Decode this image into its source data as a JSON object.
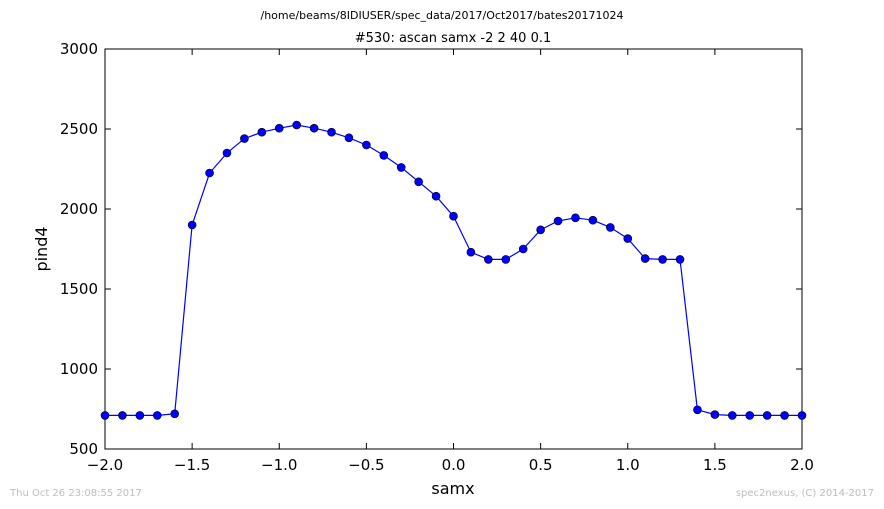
{
  "suptitle": "/home/beams/8IDIUSER/spec_data/2017/Oct2017/bates20171024",
  "footer": {
    "timestamp": "Thu Oct 26 23:08:55 2017",
    "credit": "spec2nexus, (C) 2014-2017"
  },
  "chart_data": {
    "type": "line",
    "title": "#530: ascan  samx -2 2  40 0.1",
    "xlabel": "samx",
    "ylabel": "pind4",
    "xlim": [
      -2.0,
      2.0
    ],
    "ylim": [
      500,
      3000
    ],
    "xticks": [
      "−2.0",
      "−1.5",
      "−1.0",
      "−0.5",
      "0.0",
      "0.5",
      "1.0",
      "1.5",
      "2.0"
    ],
    "yticks": [
      "500",
      "1000",
      "1500",
      "2000",
      "2500",
      "3000"
    ],
    "grid": false,
    "marker": "circle",
    "color": "#0000ff",
    "x": [
      -2.0,
      -1.9,
      -1.8,
      -1.7,
      -1.6,
      -1.5,
      -1.4,
      -1.3,
      -1.2,
      -1.1,
      -1.0,
      -0.9,
      -0.8,
      -0.7,
      -0.6,
      -0.5,
      -0.4,
      -0.3,
      -0.2,
      -0.1,
      0.0,
      0.1,
      0.2,
      0.3,
      0.4,
      0.5,
      0.6,
      0.7,
      0.8,
      0.9,
      1.0,
      1.1,
      1.2,
      1.3,
      1.4,
      1.5,
      1.6,
      1.7,
      1.8,
      1.9,
      2.0
    ],
    "y": [
      710,
      710,
      710,
      710,
      720,
      1900,
      2225,
      2350,
      2440,
      2480,
      2505,
      2525,
      2505,
      2480,
      2445,
      2400,
      2335,
      2260,
      2170,
      2080,
      1955,
      1730,
      1685,
      1685,
      1750,
      1870,
      1925,
      1945,
      1930,
      1885,
      1815,
      1690,
      1685,
      1685,
      745,
      715,
      710,
      710,
      710,
      710,
      710
    ]
  }
}
